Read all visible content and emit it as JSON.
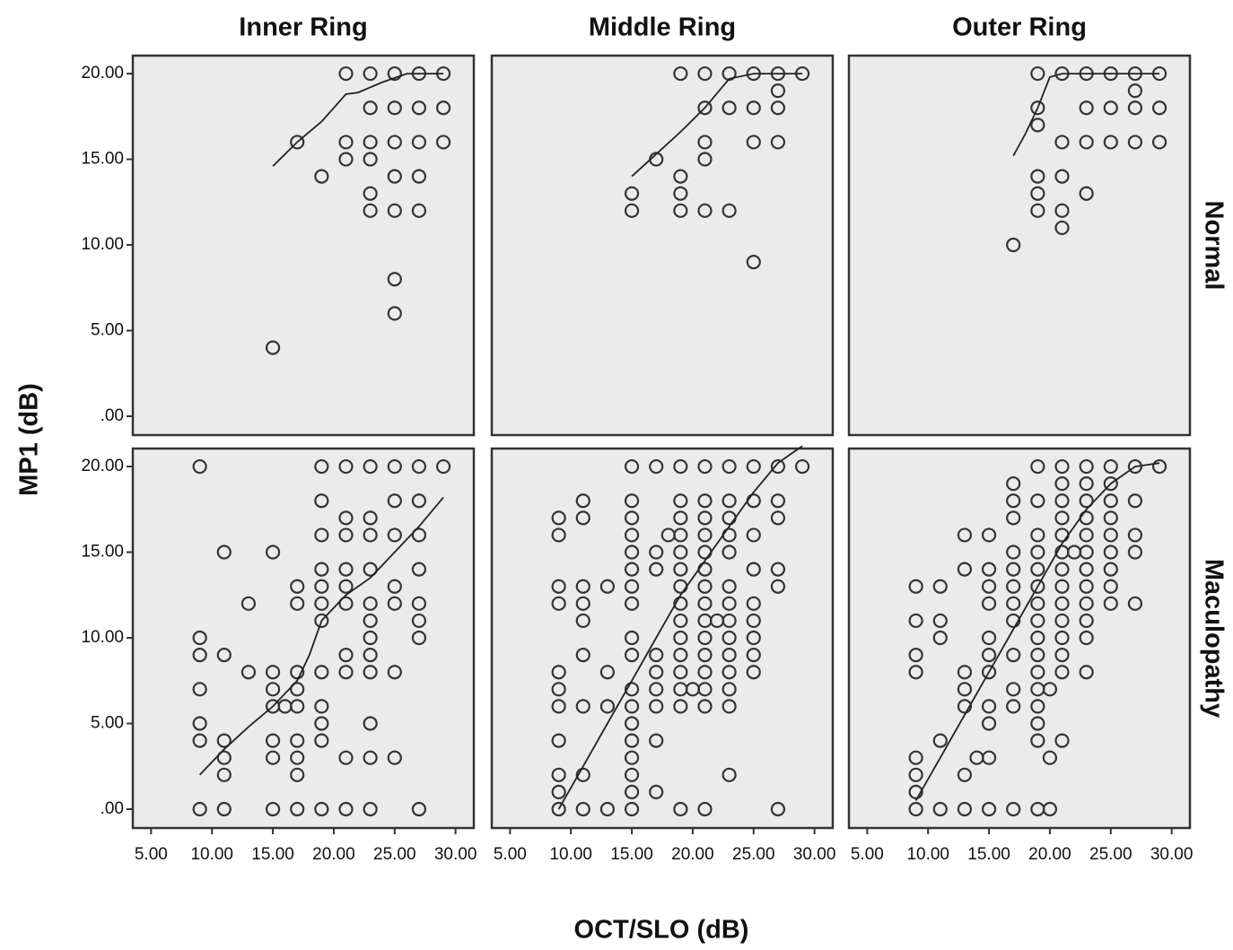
{
  "y_label": "MP1 (dB)",
  "x_label": "OCT/SLO (dB)",
  "chart_data": [
    {
      "type": "scatter",
      "title": "Inner Ring",
      "color": "#333333",
      "xlim": [
        3.5,
        31.5
      ],
      "ylim": [
        -1.1,
        21.05
      ],
      "yticks": [
        {
          "value": 0,
          "label": ".00"
        },
        {
          "value": 5,
          "label": "5.00"
        },
        {
          "value": 10,
          "label": "10.00"
        },
        {
          "value": 15,
          "label": "15.00"
        },
        {
          "value": 20,
          "label": "20.00"
        }
      ],
      "x": [
        17,
        19,
        15,
        21,
        23,
        25,
        27,
        29,
        23,
        25,
        27,
        29,
        21,
        23,
        25,
        27,
        29,
        21,
        23,
        25,
        27,
        23,
        23,
        25,
        27,
        25,
        25
      ],
      "values": [
        16,
        14,
        4,
        20,
        20,
        20,
        20,
        20,
        18,
        18,
        18,
        18,
        16,
        16,
        16,
        16,
        16,
        15,
        15,
        14,
        14,
        13,
        12,
        12,
        12,
        8,
        6
      ],
      "fit": {
        "x": [
          15,
          17,
          19,
          21,
          22,
          24,
          26,
          29
        ],
        "values": [
          14.6,
          16,
          17.2,
          18.8,
          18.9,
          19.5,
          20,
          20
        ]
      }
    },
    {
      "type": "scatter",
      "title": "Middle Ring",
      "color": "#333333",
      "xlim": [
        3.5,
        31.5
      ],
      "ylim": [
        -1.1,
        21.05
      ],
      "x": [
        19,
        21,
        23,
        25,
        27,
        29,
        27,
        21,
        23,
        25,
        27,
        21,
        25,
        27,
        21,
        17,
        19,
        15,
        19,
        15,
        19,
        21,
        23,
        25
      ],
      "values": [
        20,
        20,
        20,
        20,
        20,
        20,
        19,
        18,
        18,
        18,
        18,
        16,
        16,
        16,
        15,
        15,
        14,
        13,
        13,
        12,
        12,
        12,
        12,
        9
      ],
      "fit": {
        "x": [
          15,
          17,
          19,
          21,
          23,
          25,
          29
        ],
        "values": [
          14,
          15.3,
          16.6,
          18,
          19.7,
          20,
          20
        ]
      }
    },
    {
      "type": "scatter",
      "title": "Outer Ring",
      "row_label": "Normal",
      "color": "#333333",
      "xlim": [
        3.5,
        31.5
      ],
      "ylim": [
        -1.1,
        21.05
      ],
      "x": [
        19,
        21,
        23,
        25,
        27,
        29,
        27,
        19,
        23,
        25,
        27,
        29,
        19,
        21,
        23,
        25,
        27,
        29,
        19,
        21,
        19,
        23,
        19,
        21,
        21,
        17
      ],
      "values": [
        20,
        20,
        20,
        20,
        20,
        20,
        19,
        18,
        18,
        18,
        18,
        18,
        17,
        16,
        16,
        16,
        16,
        16,
        14,
        14,
        13,
        13,
        12,
        12,
        11,
        10
      ],
      "fit": {
        "x": [
          17,
          18,
          19,
          20,
          21,
          29
        ],
        "values": [
          15.2,
          16.5,
          18,
          19.8,
          20,
          20
        ]
      }
    },
    {
      "type": "scatter",
      "color": "#333333",
      "xlim": [
        3.5,
        31.5
      ],
      "ylim": [
        -1.1,
        21.05
      ],
      "yticks": [
        {
          "value": 0,
          "label": ".00"
        },
        {
          "value": 5,
          "label": "5.00"
        },
        {
          "value": 10,
          "label": "10.00"
        },
        {
          "value": 15,
          "label": "15.00"
        },
        {
          "value": 20,
          "label": "20.00"
        }
      ],
      "xticks": [
        {
          "value": 5,
          "label": "5.00"
        },
        {
          "value": 10,
          "label": "10.00"
        },
        {
          "value": 15,
          "label": "15.00"
        },
        {
          "value": 20,
          "label": "20.00"
        },
        {
          "value": 25,
          "label": "25.00"
        },
        {
          "value": 30,
          "label": "30.00"
        }
      ],
      "x": [
        9,
        19,
        21,
        23,
        25,
        27,
        29,
        19,
        25,
        27,
        21,
        23,
        19,
        21,
        23,
        25,
        27,
        11,
        15,
        19,
        21,
        23,
        27,
        17,
        19,
        21,
        25,
        13,
        17,
        19,
        21,
        23,
        25,
        27,
        19,
        23,
        27,
        9,
        23,
        27,
        9,
        11,
        21,
        23,
        13,
        15,
        17,
        19,
        21,
        23,
        25,
        9,
        15,
        17,
        15,
        16,
        17,
        19,
        9,
        19,
        23,
        9,
        11,
        15,
        17,
        19,
        11,
        15,
        17,
        21,
        23,
        25,
        11,
        17,
        9,
        11,
        15,
        17,
        19,
        21,
        23,
        27
      ],
      "values": [
        20,
        20,
        20,
        20,
        20,
        20,
        20,
        18,
        18,
        18,
        17,
        17,
        16,
        16,
        16,
        16,
        16,
        15,
        15,
        14,
        14,
        14,
        14,
        13,
        13,
        13,
        13,
        12,
        12,
        12,
        12,
        12,
        12,
        12,
        11,
        11,
        11,
        10,
        10,
        10,
        9,
        9,
        9,
        9,
        8,
        8,
        8,
        8,
        8,
        8,
        8,
        7,
        7,
        7,
        6,
        6,
        6,
        6,
        5,
        5,
        5,
        4,
        4,
        4,
        4,
        4,
        3,
        3,
        3,
        3,
        3,
        3,
        2,
        2,
        0,
        0,
        0,
        0,
        0,
        0,
        0,
        0
      ],
      "fit": {
        "x": [
          9,
          11,
          13,
          15,
          17,
          18,
          19,
          21,
          23,
          25,
          27,
          29
        ],
        "values": [
          2,
          3.5,
          4.8,
          6,
          7.5,
          9,
          11,
          12.5,
          13.5,
          15,
          16.5,
          18.2
        ]
      }
    },
    {
      "type": "scatter",
      "color": "#333333",
      "xlim": [
        3.5,
        31.5
      ],
      "ylim": [
        -1.1,
        21.05
      ],
      "xticks": [
        {
          "value": 5,
          "label": "5.00"
        },
        {
          "value": 10,
          "label": "10.00"
        },
        {
          "value": 15,
          "label": "15.00"
        },
        {
          "value": 20,
          "label": "20.00"
        },
        {
          "value": 25,
          "label": "25.00"
        },
        {
          "value": 30,
          "label": "30.00"
        }
      ],
      "x": [
        15,
        17,
        19,
        21,
        23,
        25,
        27,
        29,
        11,
        15,
        19,
        21,
        23,
        25,
        27,
        9,
        11,
        15,
        19,
        21,
        23,
        27,
        9,
        15,
        18,
        19,
        21,
        23,
        25,
        15,
        17,
        19,
        21,
        23,
        15,
        17,
        19,
        21,
        25,
        27,
        9,
        11,
        13,
        15,
        19,
        21,
        23,
        27,
        9,
        11,
        15,
        19,
        21,
        23,
        25,
        11,
        19,
        21,
        22,
        23,
        25,
        15,
        19,
        21,
        23,
        25,
        11,
        15,
        17,
        19,
        21,
        23,
        25,
        9,
        13,
        17,
        19,
        21,
        23,
        25,
        9,
        15,
        17,
        19,
        20,
        21,
        23,
        9,
        11,
        13,
        15,
        17,
        19,
        21,
        23,
        15,
        9,
        15,
        17,
        15,
        9,
        11,
        15,
        23,
        9,
        15,
        17,
        9,
        11,
        13,
        15,
        19,
        21,
        27
      ],
      "values": [
        20,
        20,
        20,
        20,
        20,
        20,
        20,
        20,
        18,
        18,
        18,
        18,
        18,
        18,
        18,
        17,
        17,
        17,
        17,
        17,
        17,
        17,
        16,
        16,
        16,
        16,
        16,
        16,
        16,
        15,
        15,
        15,
        15,
        15,
        14,
        14,
        14,
        14,
        14,
        14,
        13,
        13,
        13,
        13,
        13,
        13,
        13,
        13,
        12,
        12,
        12,
        12,
        12,
        12,
        12,
        11,
        11,
        11,
        11,
        11,
        11,
        10,
        10,
        10,
        10,
        10,
        9,
        9,
        9,
        9,
        9,
        9,
        9,
        8,
        8,
        8,
        8,
        8,
        8,
        8,
        7,
        7,
        7,
        7,
        7,
        7,
        7,
        6,
        6,
        6,
        6,
        6,
        6,
        6,
        6,
        5,
        4,
        4,
        4,
        3,
        2,
        2,
        2,
        2,
        1,
        1,
        1,
        0,
        0,
        0,
        0,
        0,
        0,
        0
      ],
      "fit": {
        "x": [
          9,
          11,
          13,
          15,
          17,
          19,
          21,
          23,
          25,
          27,
          29
        ],
        "values": [
          0,
          2.5,
          5,
          7.5,
          10,
          12.5,
          14.5,
          16.5,
          18.5,
          20.2,
          21.2
        ]
      }
    },
    {
      "type": "scatter",
      "row_label": "Maculopathy",
      "color": "#333333",
      "xlim": [
        3.5,
        31.5
      ],
      "ylim": [
        -1.1,
        21.05
      ],
      "xticks": [
        {
          "value": 5,
          "label": "5.00"
        },
        {
          "value": 10,
          "label": "10.00"
        },
        {
          "value": 15,
          "label": "15.00"
        },
        {
          "value": 20,
          "label": "20.00"
        },
        {
          "value": 25,
          "label": "25.00"
        },
        {
          "value": 30,
          "label": "30.00"
        }
      ],
      "x": [
        19,
        21,
        23,
        25,
        27,
        29,
        17,
        21,
        23,
        25,
        17,
        19,
        21,
        23,
        25,
        27,
        17,
        21,
        23,
        25,
        13,
        15,
        19,
        21,
        23,
        25,
        27,
        17,
        19,
        21,
        22,
        23,
        25,
        27,
        13,
        15,
        17,
        19,
        21,
        23,
        25,
        9,
        11,
        15,
        17,
        19,
        21,
        23,
        25,
        15,
        17,
        19,
        21,
        23,
        25,
        27,
        9,
        11,
        17,
        19,
        21,
        23,
        11,
        15,
        19,
        21,
        23,
        9,
        15,
        17,
        19,
        21,
        9,
        13,
        15,
        19,
        21,
        23,
        13,
        17,
        19,
        20,
        13,
        15,
        17,
        19,
        15,
        19,
        11,
        19,
        21,
        9,
        14,
        15,
        20,
        9,
        13,
        9,
        9,
        11,
        13,
        15,
        17,
        19,
        20
      ],
      "values": [
        20,
        20,
        20,
        20,
        20,
        20,
        19,
        19,
        19,
        19,
        18,
        18,
        18,
        18,
        18,
        18,
        17,
        17,
        17,
        17,
        16,
        16,
        16,
        16,
        16,
        16,
        16,
        15,
        15,
        15,
        15,
        15,
        15,
        15,
        14,
        14,
        14,
        14,
        14,
        14,
        14,
        13,
        13,
        13,
        13,
        13,
        13,
        13,
        13,
        12,
        12,
        12,
        12,
        12,
        12,
        12,
        11,
        11,
        11,
        11,
        11,
        11,
        10,
        10,
        10,
        10,
        10,
        9,
        9,
        9,
        9,
        9,
        8,
        8,
        8,
        8,
        8,
        8,
        7,
        7,
        7,
        7,
        6,
        6,
        6,
        6,
        5,
        5,
        4,
        4,
        4,
        3,
        3,
        3,
        3,
        2,
        2,
        1,
        0,
        0,
        0,
        0,
        0,
        0,
        0
      ],
      "fit": {
        "x": [
          9,
          11,
          13,
          15,
          17,
          19,
          21,
          23,
          25,
          27,
          29
        ],
        "values": [
          0.5,
          3,
          5.5,
          8,
          10.5,
          13,
          15.5,
          17.5,
          19,
          20,
          20.2
        ]
      }
    }
  ]
}
